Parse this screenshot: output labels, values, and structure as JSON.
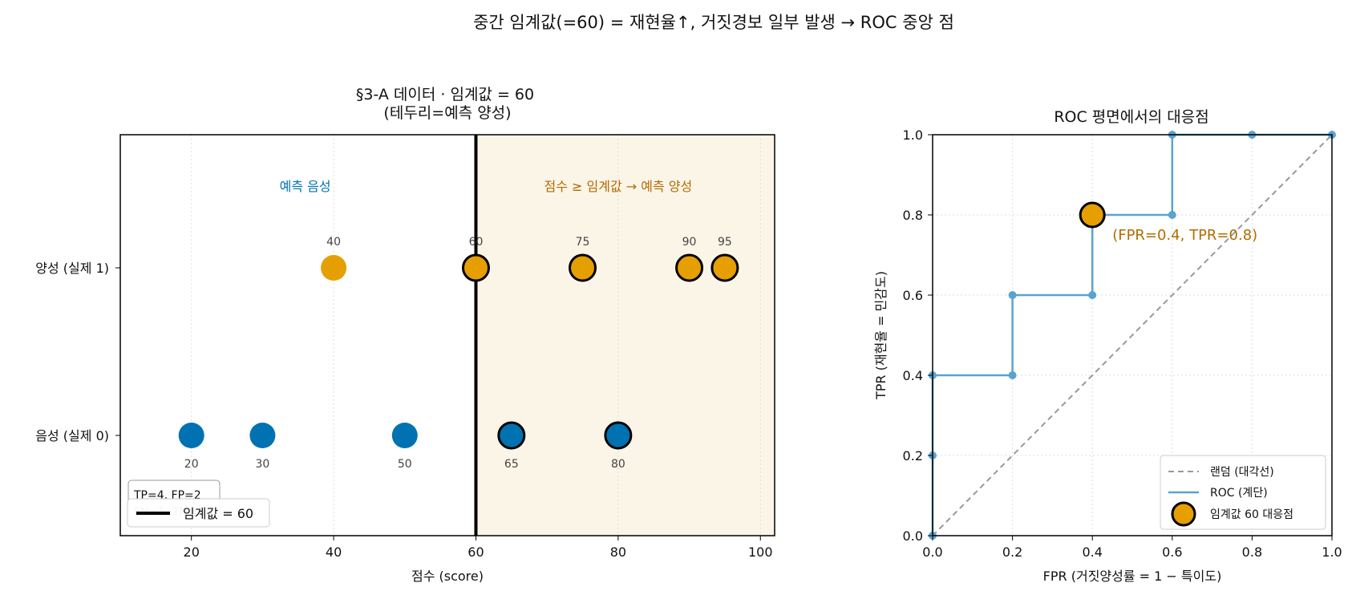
{
  "suptitle": "중간 임계값(=60) = 재현율↑, 거짓경보 일부 발생 → ROC 중앙 점",
  "colors": {
    "positive": "#E69F00",
    "negative": "#0072B2",
    "positive_text": "#B36B00",
    "negative_text": "#0072B2",
    "shade": "#FBF5E8",
    "roc": "#5BA3CF",
    "diagonal": "#999999",
    "grid": "#dddddd"
  },
  "chart_data": [
    {
      "type": "scatter",
      "title": "§3-A 데이터 · 임계값 = 60\n(테두리=예측 양성)",
      "xlabel": "점수 (score)",
      "ylabel": "",
      "xlim": [
        10,
        102
      ],
      "xticks": [
        20,
        40,
        60,
        80,
        100
      ],
      "categories": [
        "음성 (실제 0)",
        "양성 (실제 1)"
      ],
      "threshold": 60,
      "threshold_label": "임계값 = 60",
      "region_labels": {
        "negative": "예측 음성",
        "positive": "점수 ≥ 임계값 → 예측 양성"
      },
      "confusion_text": "TP=4, FP=2\nFN=1, TN=3",
      "grid": true,
      "legend": "lower-left",
      "series": [
        {
          "name": "양성 (실제 1)",
          "scores": [
            40,
            60,
            75,
            90,
            95
          ]
        },
        {
          "name": "음성 (실제 0)",
          "scores": [
            20,
            30,
            50,
            65,
            80
          ]
        }
      ]
    },
    {
      "type": "line",
      "title": "ROC 평면에서의 대응점",
      "xlabel": "FPR (거짓양성률 = 1 − 특이도)",
      "ylabel": "TPR (재현율 = 민감도)",
      "xlim": [
        0,
        1
      ],
      "ylim": [
        0,
        1
      ],
      "xticks": [
        "0.0",
        "0.2",
        "0.4",
        "0.6",
        "0.8",
        "1.0"
      ],
      "yticks": [
        "0.0",
        "0.2",
        "0.4",
        "0.6",
        "0.8",
        "1.0"
      ],
      "grid": true,
      "legend": "lower-right",
      "legend_entries": [
        "랜덤 (대각선)",
        "ROC (계단)",
        "임계값 60 대응점"
      ],
      "roc_points": [
        [
          0.0,
          0.0
        ],
        [
          0.0,
          0.2
        ],
        [
          0.0,
          0.4
        ],
        [
          0.2,
          0.4
        ],
        [
          0.2,
          0.6
        ],
        [
          0.4,
          0.6
        ],
        [
          0.4,
          0.8
        ],
        [
          0.6,
          0.8
        ],
        [
          0.6,
          1.0
        ],
        [
          0.8,
          1.0
        ],
        [
          1.0,
          1.0
        ]
      ],
      "highlight": {
        "fpr": 0.4,
        "tpr": 0.8
      },
      "annotation": "(FPR=0.4, TPR=0.8)"
    }
  ]
}
